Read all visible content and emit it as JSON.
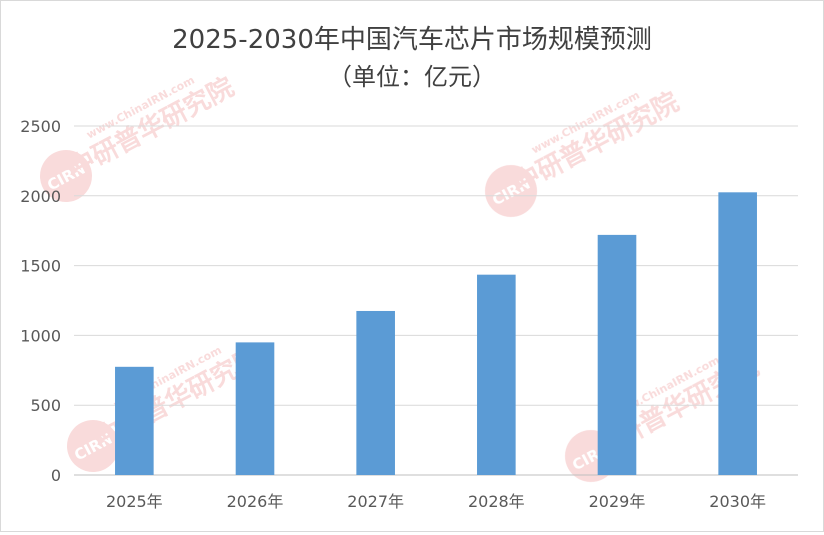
{
  "chart_data": {
    "type": "bar",
    "title": "2025-2030年中国汽车芯片市场规模预测",
    "subtitle": "（单位：亿元）",
    "categories": [
      "2025年",
      "2026年",
      "2027年",
      "2028年",
      "2029年",
      "2030年"
    ],
    "values": [
      775,
      950,
      1175,
      1435,
      1720,
      2025
    ],
    "ylim": [
      0,
      2500
    ],
    "yticks": [
      0,
      500,
      1000,
      1500,
      2000,
      2500
    ],
    "grid": true,
    "legend": "none",
    "bar_color": "#5b9bd5",
    "watermark": "中研普华研究院 www.ChinaIRN.com CIRN"
  }
}
